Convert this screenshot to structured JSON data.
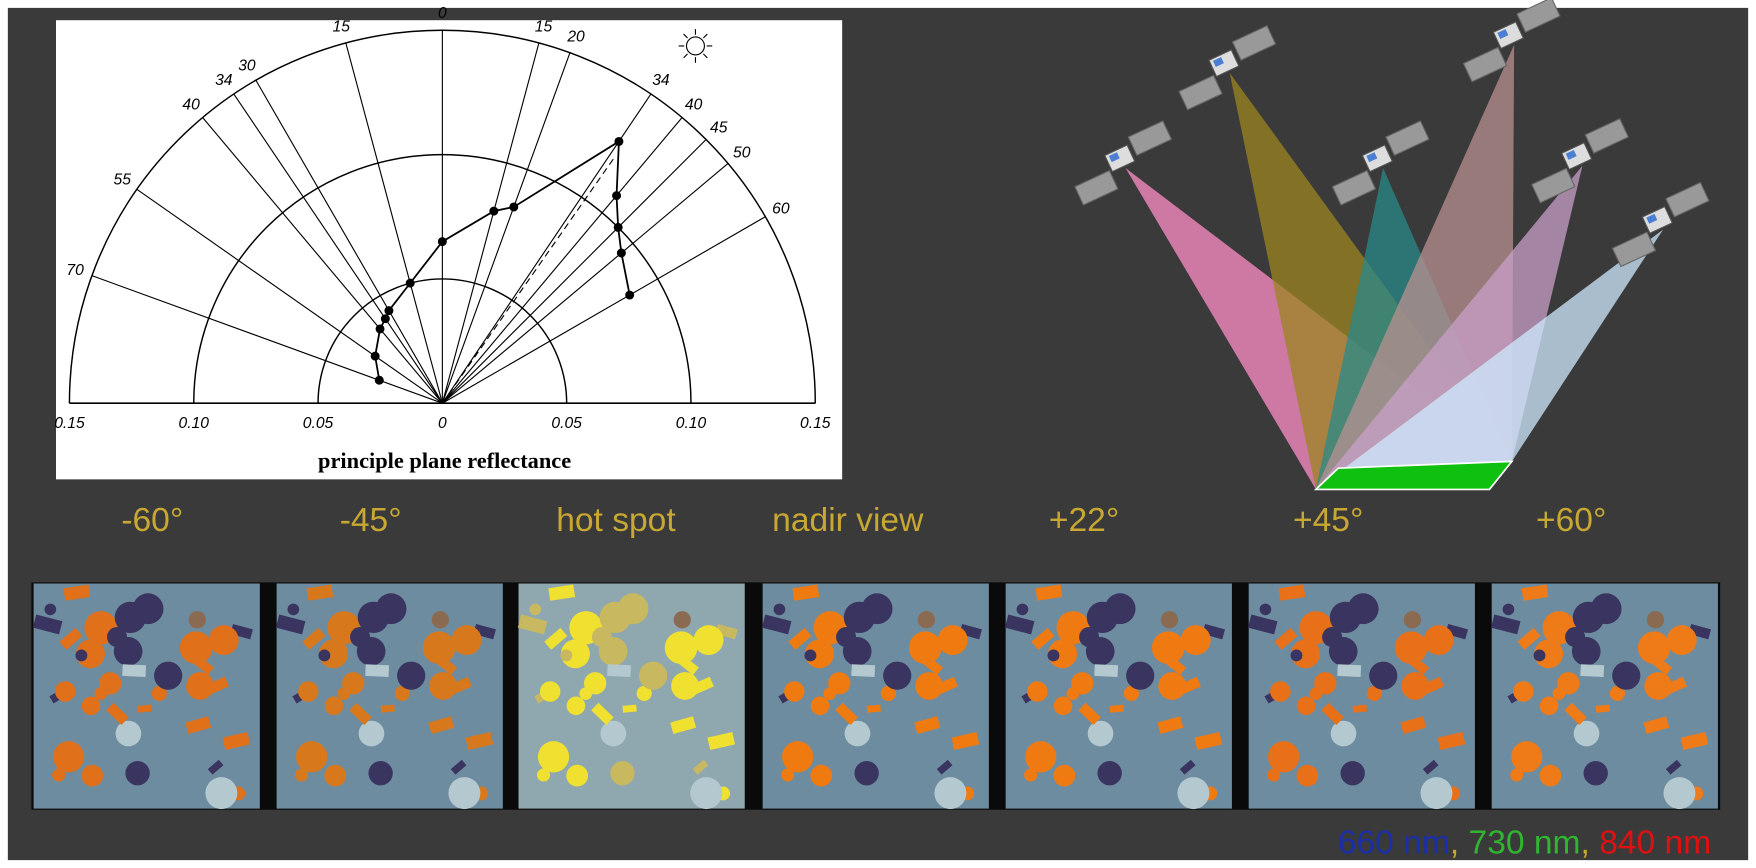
{
  "polar_plot": {
    "axis_title": "principle plane reflectance",
    "radial_ticks": [
      {
        "value": -0.15,
        "label": "0.15"
      },
      {
        "value": -0.1,
        "label": "0.10"
      },
      {
        "value": -0.05,
        "label": "0.05"
      },
      0,
      {
        "value": 0.05,
        "label": "0.05"
      },
      {
        "value": 0.1,
        "label": "0.10"
      },
      {
        "value": 0.15,
        "label": "0.15"
      }
    ],
    "spokes": [
      {
        "value": -70,
        "label": "70"
      },
      {
        "value": -55,
        "label": "55"
      },
      {
        "value": -40,
        "label": "40"
      },
      {
        "value": -34,
        "label": "34"
      },
      {
        "value": -30,
        "label": "30"
      },
      {
        "value": -15,
        "label": "15"
      },
      0,
      {
        "value": 15,
        "label": "15"
      },
      {
        "value": 20,
        "label": "20"
      },
      {
        "value": 34,
        "label": "34"
      },
      {
        "value": 40,
        "label": "40"
      },
      {
        "value": 45,
        "label": "45"
      },
      {
        "value": 50,
        "label": "50"
      },
      {
        "value": 60,
        "label": "60"
      }
    ],
    "points": [
      {
        "angle": -70,
        "value": 0.027
      },
      {
        "angle": -55,
        "value": 0.033
      },
      {
        "angle": -40,
        "value": 0.039
      },
      {
        "angle": -34,
        "value": 0.041
      },
      {
        "angle": -30,
        "value": 0.043
      },
      {
        "angle": -15,
        "value": 0.05
      },
      {
        "angle": 0,
        "value": 0.065
      },
      {
        "angle": 15,
        "value": 0.08
      },
      {
        "angle": 20,
        "value": 0.084
      },
      {
        "angle": 34,
        "value": 0.127
      },
      {
        "angle": 40,
        "value": 0.109
      },
      {
        "angle": 45,
        "value": 0.1
      },
      {
        "angle": 50,
        "value": 0.094
      },
      {
        "angle": 60,
        "value": 0.087
      }
    ]
  },
  "view_labels": [
    "-60°",
    "-45°",
    "hot spot",
    "nadir view",
    "+22°",
    "+45°",
    "+60°"
  ],
  "legend": {
    "separator": ",",
    "items": [
      {
        "text": "660 nm",
        "color": "#1a2fa8"
      },
      {
        "text": "730 nm",
        "color": "#2fb52f"
      },
      {
        "text": "840 nm",
        "color": "#e01010"
      }
    ]
  }
}
